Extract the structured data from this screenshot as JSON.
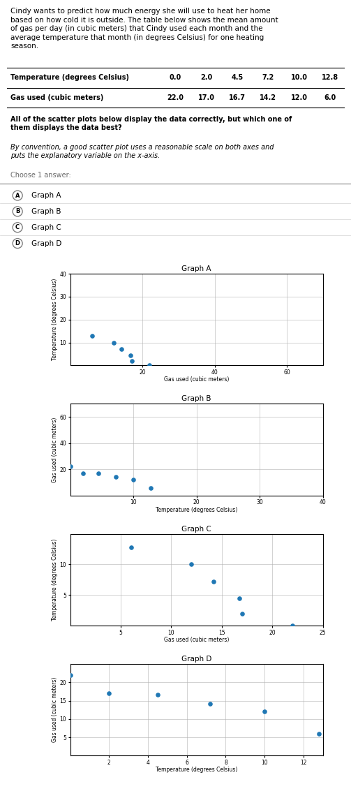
{
  "title": "Cindy wants to predict how much energy she will use to heat her home\nbased on how cold it is outside. The table below shows the mean amount\nof gas per day (in cubic meters) that Cindy used each month and the\naverage temperature that month (in degrees Celsius) for one heating\nseason.",
  "table": {
    "header": [
      "Temperature (degrees Celsius)",
      "0.0",
      "2.0",
      "4.5",
      "7.2",
      "10.0",
      "12.8"
    ],
    "rows": [
      [
        "Gas used (cubic meters)",
        "22.0",
        "17.0",
        "16.7",
        "14.2",
        "12.0",
        "6.0"
      ]
    ]
  },
  "annotations": [
    "All of the scatter plots below display the data correctly, but which one of\nthem displays the data best?",
    "By convention, a good scatter plot uses a reasonable scale on both axes and\nputs the explanatory variable on the x-axis.",
    "Choose 1 answer:"
  ],
  "choices": [
    {
      "label": "A",
      "text": "Graph A"
    },
    {
      "label": "B",
      "text": "Graph B"
    },
    {
      "label": "C",
      "text": "Graph C"
    },
    {
      "label": "D",
      "text": "Graph D"
    }
  ],
  "chart_data": [
    {
      "type": "scatter",
      "title": "Graph A",
      "x_label": "Gas used (cubic meters)",
      "y_label": "Temperature (degrees Celsius)",
      "x": [
        22.0,
        17.0,
        16.7,
        14.2,
        12.0,
        6.0
      ],
      "values": [
        0.0,
        2.0,
        4.5,
        7.2,
        10.0,
        12.8
      ],
      "xlim": [
        0,
        70
      ],
      "ylim": [
        0,
        40
      ],
      "xticks": [
        20,
        40,
        60
      ],
      "yticks": [
        10,
        20,
        30,
        40
      ],
      "grid": true
    },
    {
      "type": "scatter",
      "title": "Graph B",
      "x_label": "Temperature (degrees Celsius)",
      "y_label": "Gas used (cubic meters)",
      "x": [
        0.0,
        2.0,
        4.5,
        7.2,
        10.0,
        12.8
      ],
      "values": [
        22.0,
        17.0,
        16.7,
        14.2,
        12.0,
        6.0
      ],
      "xlim": [
        0,
        40
      ],
      "ylim": [
        0,
        70
      ],
      "xticks": [
        10,
        20,
        30,
        40
      ],
      "yticks": [
        20,
        40,
        60
      ],
      "grid": true
    },
    {
      "type": "scatter",
      "title": "Graph C",
      "x_label": "Gas used (cubic meters)",
      "y_label": "Temperature (degrees Celsius)",
      "x": [
        22.0,
        17.0,
        16.7,
        14.2,
        12.0,
        6.0
      ],
      "values": [
        0.0,
        2.0,
        4.5,
        7.2,
        10.0,
        12.8
      ],
      "xlim": [
        0,
        25
      ],
      "ylim": [
        0,
        15
      ],
      "xticks": [
        5,
        10,
        15,
        20,
        25
      ],
      "yticks": [
        5,
        10
      ],
      "grid": true
    },
    {
      "type": "scatter",
      "title": "Graph D",
      "x_label": "Temperature (degrees Celsius)",
      "y_label": "Gas used (cubic meters)",
      "x": [
        0.0,
        2.0,
        4.5,
        7.2,
        10.0,
        12.8
      ],
      "values": [
        22.0,
        17.0,
        16.7,
        14.2,
        12.0,
        6.0
      ],
      "xlim": [
        0,
        13
      ],
      "ylim": [
        0,
        25
      ],
      "xticks": [
        2,
        4,
        6,
        8,
        10,
        12
      ],
      "yticks": [
        5,
        10,
        15,
        20
      ],
      "grid": true
    }
  ]
}
